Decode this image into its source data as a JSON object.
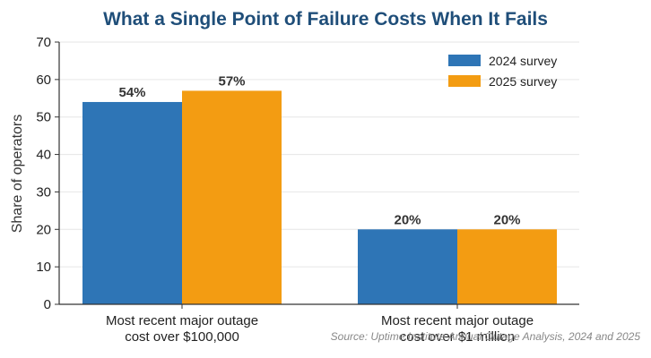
{
  "colors": {
    "title": "#1f4e79",
    "series_2024": "#2e75b6",
    "series_2025": "#f39c12"
  },
  "chart_data": {
    "type": "bar",
    "title": "What a Single Point of Failure Costs When It Fails",
    "xlabel": "",
    "ylabel": "Share of operators",
    "ylim": [
      0,
      70
    ],
    "yticks": [
      0,
      10,
      20,
      30,
      40,
      50,
      60,
      70
    ],
    "categories": [
      [
        "Most recent major outage",
        "cost over $100,000"
      ],
      [
        "Most recent major outage",
        "cost over $1 million"
      ]
    ],
    "series": [
      {
        "name": "2024 survey",
        "values": [
          54,
          20
        ],
        "labels": [
          "54%",
          "20%"
        ]
      },
      {
        "name": "2025 survey",
        "values": [
          57,
          20
        ],
        "labels": [
          "57%",
          "20%"
        ]
      }
    ],
    "grid": true,
    "legend": "top-right",
    "source": "Source: Uptime Institute Annual Outage Analysis, 2024 and 2025"
  }
}
